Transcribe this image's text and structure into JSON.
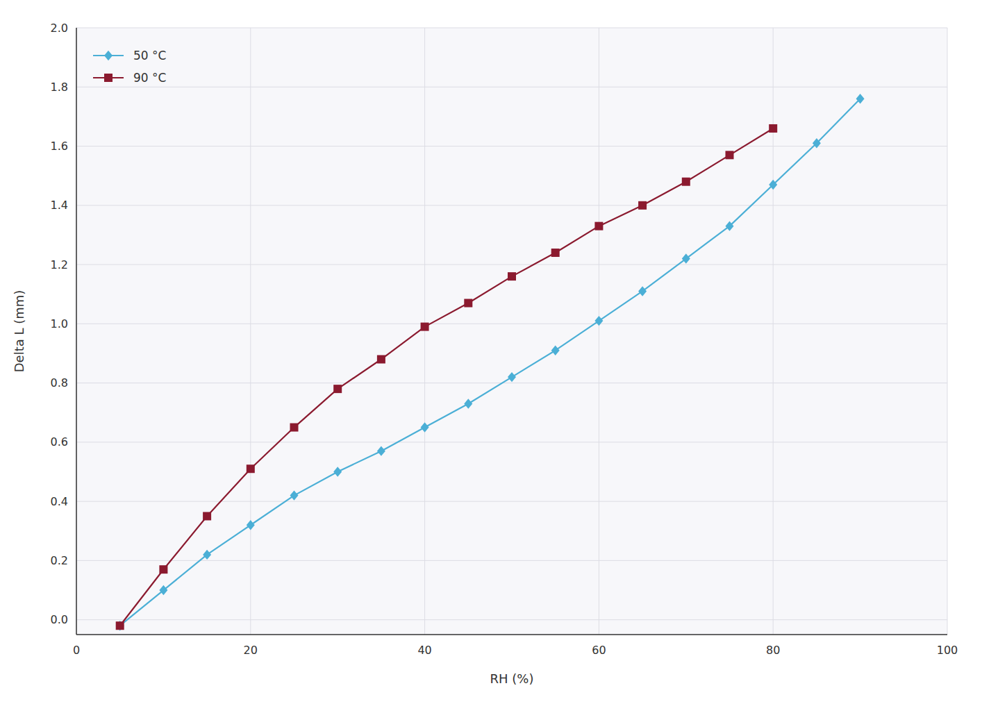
{
  "chart_data": {
    "type": "line",
    "xlabel": "RH (%)",
    "ylabel": "Delta L (mm)",
    "xlim": [
      0,
      100
    ],
    "ylim": [
      -0.05,
      2.0
    ],
    "xticks": [
      0,
      20,
      40,
      60,
      80,
      100
    ],
    "yticks": [
      {
        "value": 0.0,
        "label": "0.0"
      },
      0.2,
      0.4,
      0.6,
      0.8,
      {
        "value": 1.0,
        "label": "1.0"
      },
      1.2,
      1.4,
      1.6,
      1.8,
      {
        "value": 2.0,
        "label": "2.0"
      }
    ],
    "grid": true,
    "legend": "upper left",
    "series": [
      {
        "name": "50 °C",
        "color": "#4BAFD6",
        "marker": "diamond",
        "x": [
          5,
          10,
          15,
          20,
          25,
          30,
          35,
          40,
          45,
          50,
          55,
          60,
          65,
          70,
          75,
          80,
          85,
          90
        ],
        "values": [
          -0.02,
          0.1,
          0.22,
          0.32,
          0.42,
          0.5,
          0.57,
          0.65,
          0.73,
          0.82,
          0.91,
          1.01,
          1.11,
          1.22,
          1.33,
          1.47,
          1.61,
          1.76
        ]
      },
      {
        "name": "90 °C",
        "color": "#8B1A2F",
        "marker": "square",
        "x": [
          5,
          10,
          15,
          20,
          25,
          30,
          35,
          40,
          45,
          50,
          55,
          60,
          65,
          70,
          75,
          80
        ],
        "values": [
          -0.02,
          0.17,
          0.35,
          0.51,
          0.65,
          0.78,
          0.88,
          0.99,
          1.07,
          1.16,
          1.24,
          1.33,
          1.4,
          1.48,
          1.57,
          1.66
        ]
      }
    ]
  }
}
